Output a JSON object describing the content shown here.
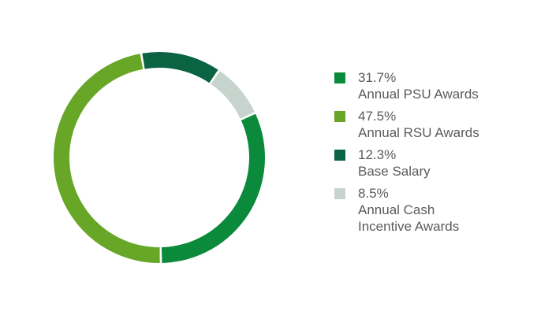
{
  "chart_data": {
    "type": "pie",
    "title": "",
    "slices": [
      {
        "label": "Annual PSU Awards",
        "value": 31.7,
        "value_label": "31.7%",
        "color": "#0a8a3a"
      },
      {
        "label": "Annual RSU Awards",
        "value": 47.5,
        "value_label": "47.5%",
        "color": "#67a626"
      },
      {
        "label": "Base Salary",
        "value": 12.3,
        "value_label": "12.3%",
        "color": "#0a6343"
      },
      {
        "label": "Annual Cash\nIncentive Awards",
        "value": 8.5,
        "value_label": "8.5%",
        "color": "#c7d3cd"
      }
    ],
    "legend": {
      "position": "right"
    },
    "donut": true
  }
}
